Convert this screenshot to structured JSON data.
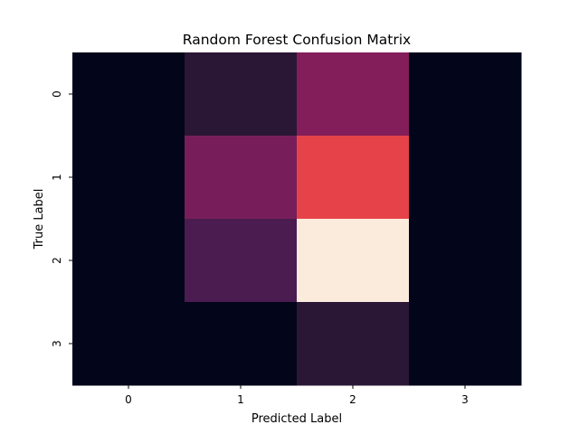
{
  "chart_data": {
    "type": "heatmap",
    "title": "Random Forest Confusion Matrix",
    "xlabel": "Predicted Label",
    "ylabel": "True Label",
    "x_categories": [
      "0",
      "1",
      "2",
      "3"
    ],
    "y_categories": [
      "0",
      "1",
      "2",
      "3"
    ],
    "values": [
      [
        0,
        2,
        9,
        0
      ],
      [
        0,
        8,
        17,
        0
      ],
      [
        0,
        4,
        27,
        0
      ],
      [
        0,
        0,
        2,
        0
      ]
    ],
    "value_range": [
      0,
      27
    ],
    "colormap": "rocket",
    "colorbar": false,
    "grid": false
  }
}
